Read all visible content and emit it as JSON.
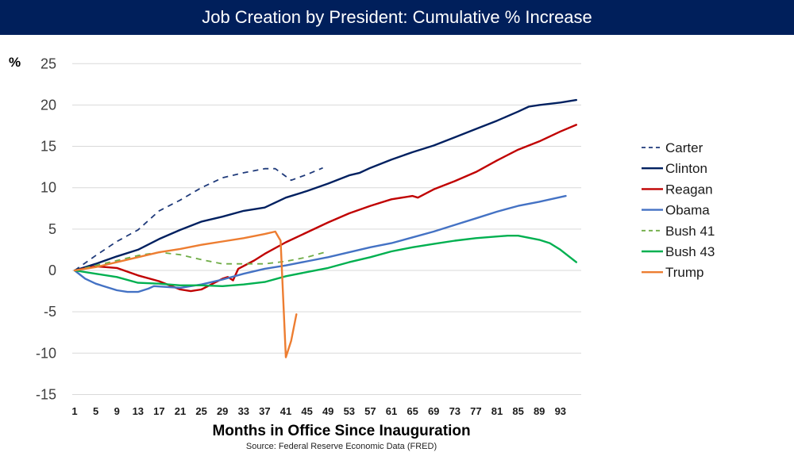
{
  "chart_data": {
    "type": "line",
    "title": "Job Creation by President:  Cumulative % Increase",
    "xlabel": "Months in Office Since Inauguration",
    "ylabel": "%",
    "source": "Source:  Federal Reserve Economic Data (FRED)",
    "ylim": [
      -15,
      25
    ],
    "yticks": [
      25,
      20,
      15,
      10,
      5,
      0,
      -5,
      -10,
      -15
    ],
    "xlim": [
      1,
      96
    ],
    "xticks": [
      1,
      5,
      9,
      13,
      17,
      21,
      25,
      29,
      33,
      37,
      41,
      45,
      49,
      53,
      57,
      61,
      65,
      69,
      73,
      77,
      81,
      85,
      89,
      93
    ],
    "grid": true,
    "legend_position": "right",
    "series": [
      {
        "name": "Carter",
        "color": "#1f3a7a",
        "dash": true,
        "points": [
          [
            1,
            0
          ],
          [
            5,
            1.8
          ],
          [
            9,
            3.5
          ],
          [
            13,
            4.9
          ],
          [
            17,
            7.2
          ],
          [
            21,
            8.5
          ],
          [
            25,
            10.0
          ],
          [
            29,
            11.2
          ],
          [
            33,
            11.8
          ],
          [
            37,
            12.3
          ],
          [
            39,
            12.3
          ],
          [
            42,
            10.9
          ],
          [
            45,
            11.6
          ],
          [
            48,
            12.4
          ]
        ]
      },
      {
        "name": "Clinton",
        "color": "#002060",
        "dash": false,
        "points": [
          [
            1,
            0
          ],
          [
            5,
            0.8
          ],
          [
            9,
            1.7
          ],
          [
            13,
            2.5
          ],
          [
            17,
            3.8
          ],
          [
            21,
            4.9
          ],
          [
            25,
            5.9
          ],
          [
            29,
            6.5
          ],
          [
            33,
            7.2
          ],
          [
            37,
            7.6
          ],
          [
            41,
            8.8
          ],
          [
            45,
            9.6
          ],
          [
            49,
            10.5
          ],
          [
            53,
            11.5
          ],
          [
            55,
            11.8
          ],
          [
            57,
            12.4
          ],
          [
            61,
            13.4
          ],
          [
            65,
            14.3
          ],
          [
            69,
            15.1
          ],
          [
            73,
            16.1
          ],
          [
            77,
            17.1
          ],
          [
            81,
            18.1
          ],
          [
            85,
            19.2
          ],
          [
            87,
            19.8
          ],
          [
            89,
            20.0
          ],
          [
            93,
            20.3
          ],
          [
            96,
            20.6
          ]
        ]
      },
      {
        "name": "Reagan",
        "color": "#c00000",
        "dash": false,
        "points": [
          [
            1,
            0
          ],
          [
            5,
            0.5
          ],
          [
            9,
            0.3
          ],
          [
            13,
            -0.6
          ],
          [
            17,
            -1.3
          ],
          [
            21,
            -2.3
          ],
          [
            23,
            -2.5
          ],
          [
            25,
            -2.3
          ],
          [
            29,
            -1.0
          ],
          [
            30,
            -0.8
          ],
          [
            31,
            -1.2
          ],
          [
            32,
            0.2
          ],
          [
            35,
            1.2
          ],
          [
            37,
            2.0
          ],
          [
            41,
            3.4
          ],
          [
            45,
            4.6
          ],
          [
            49,
            5.8
          ],
          [
            53,
            6.9
          ],
          [
            57,
            7.8
          ],
          [
            61,
            8.6
          ],
          [
            65,
            9.0
          ],
          [
            66,
            8.8
          ],
          [
            69,
            9.8
          ],
          [
            73,
            10.8
          ],
          [
            77,
            11.9
          ],
          [
            81,
            13.3
          ],
          [
            85,
            14.6
          ],
          [
            89,
            15.6
          ],
          [
            93,
            16.8
          ],
          [
            96,
            17.6
          ]
        ]
      },
      {
        "name": "Obama",
        "color": "#4472c4",
        "dash": false,
        "points": [
          [
            1,
            0
          ],
          [
            3,
            -1.0
          ],
          [
            5,
            -1.6
          ],
          [
            9,
            -2.4
          ],
          [
            11,
            -2.6
          ],
          [
            13,
            -2.6
          ],
          [
            15,
            -2.2
          ],
          [
            16,
            -1.9
          ],
          [
            21,
            -2.1
          ],
          [
            25,
            -1.7
          ],
          [
            29,
            -1.1
          ],
          [
            33,
            -0.4
          ],
          [
            37,
            0.2
          ],
          [
            41,
            0.6
          ],
          [
            45,
            1.1
          ],
          [
            49,
            1.6
          ],
          [
            53,
            2.2
          ],
          [
            57,
            2.8
          ],
          [
            61,
            3.3
          ],
          [
            65,
            4.0
          ],
          [
            69,
            4.7
          ],
          [
            73,
            5.5
          ],
          [
            77,
            6.3
          ],
          [
            81,
            7.1
          ],
          [
            85,
            7.8
          ],
          [
            89,
            8.3
          ],
          [
            94,
            9.0
          ]
        ]
      },
      {
        "name": "Bush 41",
        "color": "#70ad47",
        "dash": true,
        "points": [
          [
            1,
            0
          ],
          [
            9,
            1.2
          ],
          [
            13,
            1.8
          ],
          [
            17,
            2.2
          ],
          [
            21,
            1.9
          ],
          [
            25,
            1.3
          ],
          [
            29,
            0.8
          ],
          [
            33,
            0.8
          ],
          [
            37,
            0.8
          ],
          [
            41,
            1.1
          ],
          [
            45,
            1.6
          ],
          [
            49,
            2.3
          ]
        ]
      },
      {
        "name": "Bush 43",
        "color": "#00b050",
        "dash": false,
        "points": [
          [
            1,
            0
          ],
          [
            5,
            -0.4
          ],
          [
            9,
            -0.8
          ],
          [
            13,
            -1.5
          ],
          [
            17,
            -1.6
          ],
          [
            21,
            -1.8
          ],
          [
            25,
            -1.8
          ],
          [
            29,
            -1.9
          ],
          [
            33,
            -1.7
          ],
          [
            37,
            -1.4
          ],
          [
            41,
            -0.7
          ],
          [
            45,
            -0.2
          ],
          [
            49,
            0.3
          ],
          [
            53,
            1.0
          ],
          [
            57,
            1.6
          ],
          [
            61,
            2.3
          ],
          [
            65,
            2.8
          ],
          [
            69,
            3.2
          ],
          [
            73,
            3.6
          ],
          [
            77,
            3.9
          ],
          [
            81,
            4.1
          ],
          [
            83,
            4.2
          ],
          [
            85,
            4.2
          ],
          [
            89,
            3.7
          ],
          [
            91,
            3.3
          ],
          [
            93,
            2.5
          ],
          [
            96,
            1.0
          ]
        ]
      },
      {
        "name": "Trump",
        "color": "#ed7d31",
        "dash": false,
        "points": [
          [
            1,
            0
          ],
          [
            5,
            0.4
          ],
          [
            9,
            1.0
          ],
          [
            13,
            1.6
          ],
          [
            17,
            2.2
          ],
          [
            21,
            2.6
          ],
          [
            25,
            3.1
          ],
          [
            29,
            3.5
          ],
          [
            33,
            3.9
          ],
          [
            37,
            4.4
          ],
          [
            39,
            4.7
          ],
          [
            40,
            3.6
          ],
          [
            41,
            -10.5
          ],
          [
            42,
            -8.5
          ],
          [
            43,
            -5.3
          ]
        ]
      }
    ]
  }
}
